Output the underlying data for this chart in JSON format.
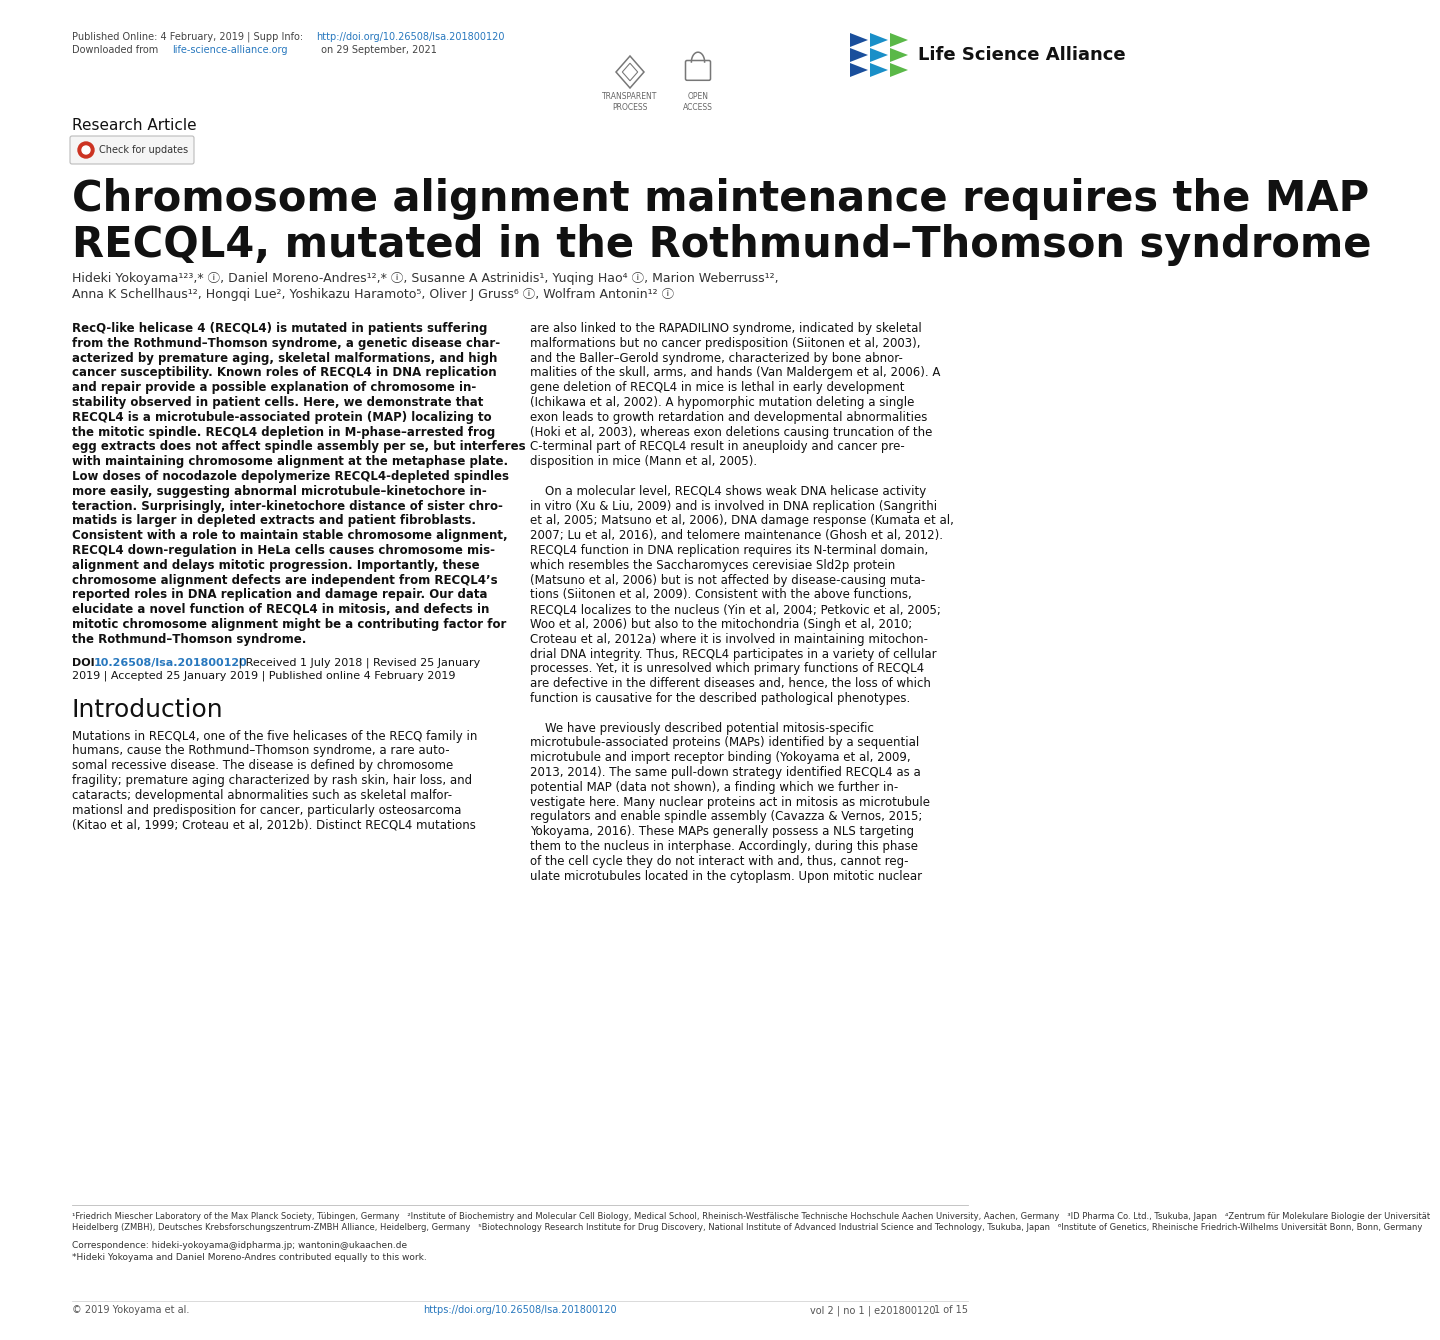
{
  "title_line1": "Chromosome alignment maintenance requires the MAP",
  "title_line2": "RECQL4, mutated in the Rothmund–Thomson syndrome",
  "authors_line1": "Hideki Yokoyama¹²³,* ⓘ, Daniel Moreno-Andres¹²,* ⓘ, Susanne A Astrinidis¹, Yuqing Hao⁴ ⓘ, Marion Weberruss¹²,",
  "authors_line2": "Anna K Schellhaus¹², Hongqi Lue², Yoshikazu Haramoto⁵, Oliver J Gruss⁶ ⓘ, Wolfram Antonin¹² ⓘ",
  "header_plain1": "Published Online: 4 February, 2019 | Supp Info: ",
  "header_link1": "http://doi.org/10.26508/lsa.201800120",
  "header_plain2a": "Downloaded from ",
  "header_link2": "life-science-alliance.org",
  "header_plain2b": " on 29 September, 2021",
  "section_label": "Research Article",
  "journal_name": "Life Science Alliance",
  "transparent_label": "TRANSPARENT\nPROCESS",
  "open_access_label": "OPEN\nACCESS",
  "check_updates": "Check for updates",
  "abstract_lines": [
    "RecQ-like helicase 4 (RECQL4) is mutated in patients suffering",
    "from the Rothmund–Thomson syndrome, a genetic disease char-",
    "acterized by premature aging, skeletal malformations, and high",
    "cancer susceptibility. Known roles of RECQL4 in DNA replication",
    "and repair provide a possible explanation of chromosome in-",
    "stability observed in patient cells. Here, we demonstrate that",
    "RECQL4 is a microtubule-associated protein (MAP) localizing to",
    "the mitotic spindle. RECQL4 depletion in M-phase–arrested frog",
    "egg extracts does not affect spindle assembly per se, but interferes",
    "with maintaining chromosome alignment at the metaphase plate.",
    "Low doses of nocodazole depolymerize RECQL4-depleted spindles",
    "more easily, suggesting abnormal microtubule–kinetochore in-",
    "teraction. Surprisingly, inter-kinetochore distance of sister chro-",
    "matids is larger in depleted extracts and patient fibroblasts.",
    "Consistent with a role to maintain stable chromosome alignment,",
    "RECQL4 down-regulation in HeLa cells causes chromosome mis-",
    "alignment and delays mitotic progression. Importantly, these",
    "chromosome alignment defects are independent from RECQL4’s",
    "reported roles in DNA replication and damage repair. Our data",
    "elucidate a novel function of RECQL4 in mitosis, and defects in",
    "mitotic chromosome alignment might be a contributing factor for",
    "the Rothmund–Thomson syndrome."
  ],
  "doi_text": "DOI 10.26508/lsa.201800120 | Received 1 July 2018 | Revised 25 January",
  "doi_text2": "2019 | Accepted 25 January 2019 | Published online 4 February 2019",
  "intro_title": "Introduction",
  "intro_lines": [
    "Mutations in RECQL4, one of the five helicases of the RECQ family in",
    "humans, cause the Rothmund–Thomson syndrome, a rare auto-",
    "somal recessive disease. The disease is defined by chromosome",
    "fragility; premature aging characterized by rash skin, hair loss, and",
    "cataracts; developmental abnormalities such as skeletal malfor-",
    "mationsl and predisposition for cancer, particularly osteosarcoma",
    "(Kitao et al, 1999; Croteau et al, 2012b). Distinct RECQL4 mutations"
  ],
  "right_lines": [
    "are also linked to the RAPADILINO syndrome, indicated by skeletal",
    "malformations but no cancer predisposition (Siitonen et al, 2003),",
    "and the Baller–Gerold syndrome, characterized by bone abnor-",
    "malities of the skull, arms, and hands (Van Maldergem et al, 2006). A",
    "gene deletion of RECQL4 in mice is lethal in early development",
    "(Ichikawa et al, 2002). A hypomorphic mutation deleting a single",
    "exon leads to growth retardation and developmental abnormalities",
    "(Hoki et al, 2003), whereas exon deletions causing truncation of the",
    "C-terminal part of RECQL4 result in aneuploidy and cancer pre-",
    "disposition in mice (Mann et al, 2005).",
    "",
    "    On a molecular level, RECQL4 shows weak DNA helicase activity",
    "in vitro (Xu & Liu, 2009) and is involved in DNA replication (Sangrithi",
    "et al, 2005; Matsuno et al, 2006), DNA damage response (Kumata et al,",
    "2007; Lu et al, 2016), and telomere maintenance (Ghosh et al, 2012).",
    "RECQL4 function in DNA replication requires its N-terminal domain,",
    "which resembles the Saccharomyces cerevisiae Sld2p protein",
    "(Matsuno et al, 2006) but is not affected by disease-causing muta-",
    "tions (Siitonen et al, 2009). Consistent with the above functions,",
    "RECQL4 localizes to the nucleus (Yin et al, 2004; Petkovic et al, 2005;",
    "Woo et al, 2006) but also to the mitochondria (Singh et al, 2010;",
    "Croteau et al, 2012a) where it is involved in maintaining mitochon-",
    "drial DNA integrity. Thus, RECQL4 participates in a variety of cellular",
    "processes. Yet, it is unresolved which primary functions of RECQL4",
    "are defective in the different diseases and, hence, the loss of which",
    "function is causative for the described pathological phenotypes.",
    "",
    "    We have previously described potential mitosis-specific",
    "microtubule-associated proteins (MAPs) identified by a sequential",
    "microtubule and import receptor binding (Yokoyama et al, 2009,",
    "2013, 2014). The same pull-down strategy identified RECQL4 as a",
    "potential MAP (data not shown), a finding which we further in-",
    "vestigate here. Many nuclear proteins act in mitosis as microtubule",
    "regulators and enable spindle assembly (Cavazza & Vernos, 2015;",
    "Yokoyama, 2016). These MAPs generally possess a NLS targeting",
    "them to the nucleus in interphase. Accordingly, during this phase",
    "of the cell cycle they do not interact with and, thus, cannot reg-",
    "ulate microtubules located in the cytoplasm. Upon mitotic nuclear"
  ],
  "footnote_lines": [
    "¹Friedrich Miescher Laboratory of the Max Planck Society, Tübingen, Germany   ²Institute of Biochemistry and Molecular Cell Biology, Medical School, Rheinisch-Westfälische Technische Hochschule Aachen University, Aachen, Germany   ³ID Pharma Co. Ltd., Tsukuba, Japan   ⁴Zentrum für Molekulare Biologie der Universität",
    "Heidelberg (ZMBH), Deutsches Krebsforschungszentrum-ZMBH Alliance, Heidelberg, Germany   ⁵Biotechnology Research Institute for Drug Discovery, National Institute of Advanced Industrial Science and Technology, Tsukuba, Japan   ⁶Institute of Genetics, Rheinische Friedrich-Wilhelms Universität Bonn, Bonn, Germany"
  ],
  "correspondence1": "Correspondence: hideki-yokoyama@idpharma.jp; wantonin@ukaachen.de",
  "correspondence2": "*Hideki Yokoyama and Daniel Moreno-Andres contributed equally to this work.",
  "footer_left": "© 2019 Yokoyama et al.",
  "footer_doi": "https://doi.org/10.26508/lsa.201800120",
  "footer_vol": "vol 2 | no 1 | e201800120",
  "footer_page": "1 of 15",
  "bg": "#ffffff",
  "black": "#111111",
  "gray": "#555555",
  "link": "#2878be",
  "logo_colors": [
    "#1a4f9c",
    "#1a4f9c",
    "#1a8fc8",
    "#1a8fc8",
    "#5ab848",
    "#5ab848",
    "#1a4f9c",
    "#1a8fc8",
    "#5ab848"
  ]
}
